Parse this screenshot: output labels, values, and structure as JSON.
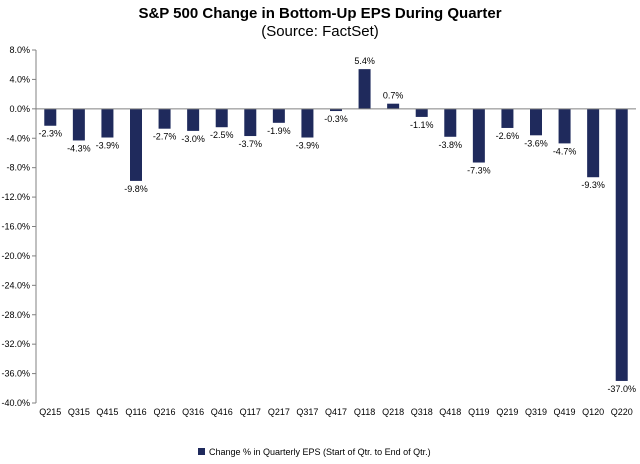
{
  "chart_data": {
    "type": "bar",
    "title": "S&P 500 Change in Bottom-Up EPS During Quarter",
    "subtitle": "(Source: FactSet)",
    "categories": [
      "Q215",
      "Q315",
      "Q415",
      "Q116",
      "Q216",
      "Q316",
      "Q416",
      "Q117",
      "Q217",
      "Q317",
      "Q417",
      "Q118",
      "Q218",
      "Q318",
      "Q418",
      "Q119",
      "Q219",
      "Q319",
      "Q419",
      "Q120",
      "Q220"
    ],
    "series": [
      {
        "name": "Change % in Quarterly EPS (Start of Qtr. to End of Qtr.)",
        "values": [
          -2.3,
          -4.3,
          -3.9,
          -9.8,
          -2.7,
          -3.0,
          -2.5,
          -3.7,
          -1.9,
          -3.9,
          -0.3,
          5.4,
          0.7,
          -1.1,
          -3.8,
          -7.3,
          -2.6,
          -3.6,
          -4.7,
          -9.3,
          -37.0
        ],
        "data_labels": [
          "-2.3%",
          "-4.3%",
          "-3.9%",
          "-9.8%",
          "-2.7%",
          "-3.0%",
          "-2.5%",
          "-3.7%",
          "-1.9%",
          "-3.9%",
          "-0.3%",
          "5.4%",
          "0.7%",
          "-1.1%",
          "-3.8%",
          "-7.3%",
          "-2.6%",
          "-3.6%",
          "-4.7%",
          "-9.3%",
          "-37.0%"
        ],
        "color": "#1f2a5c"
      }
    ],
    "ylim": [
      -40,
      8
    ],
    "yticks": [
      8,
      4,
      0,
      -4,
      -8,
      -12,
      -16,
      -20,
      -24,
      -28,
      -32,
      -36,
      -40
    ],
    "ytick_labels": [
      "8.0%",
      "4.0%",
      "0.0%",
      "-4.0%",
      "-8.0%",
      "-12.0%",
      "-16.0%",
      "-20.0%",
      "-24.0%",
      "-28.0%",
      "-32.0%",
      "-36.0%",
      "-40.0%"
    ],
    "grid": false,
    "legend_position": "bottom"
  }
}
